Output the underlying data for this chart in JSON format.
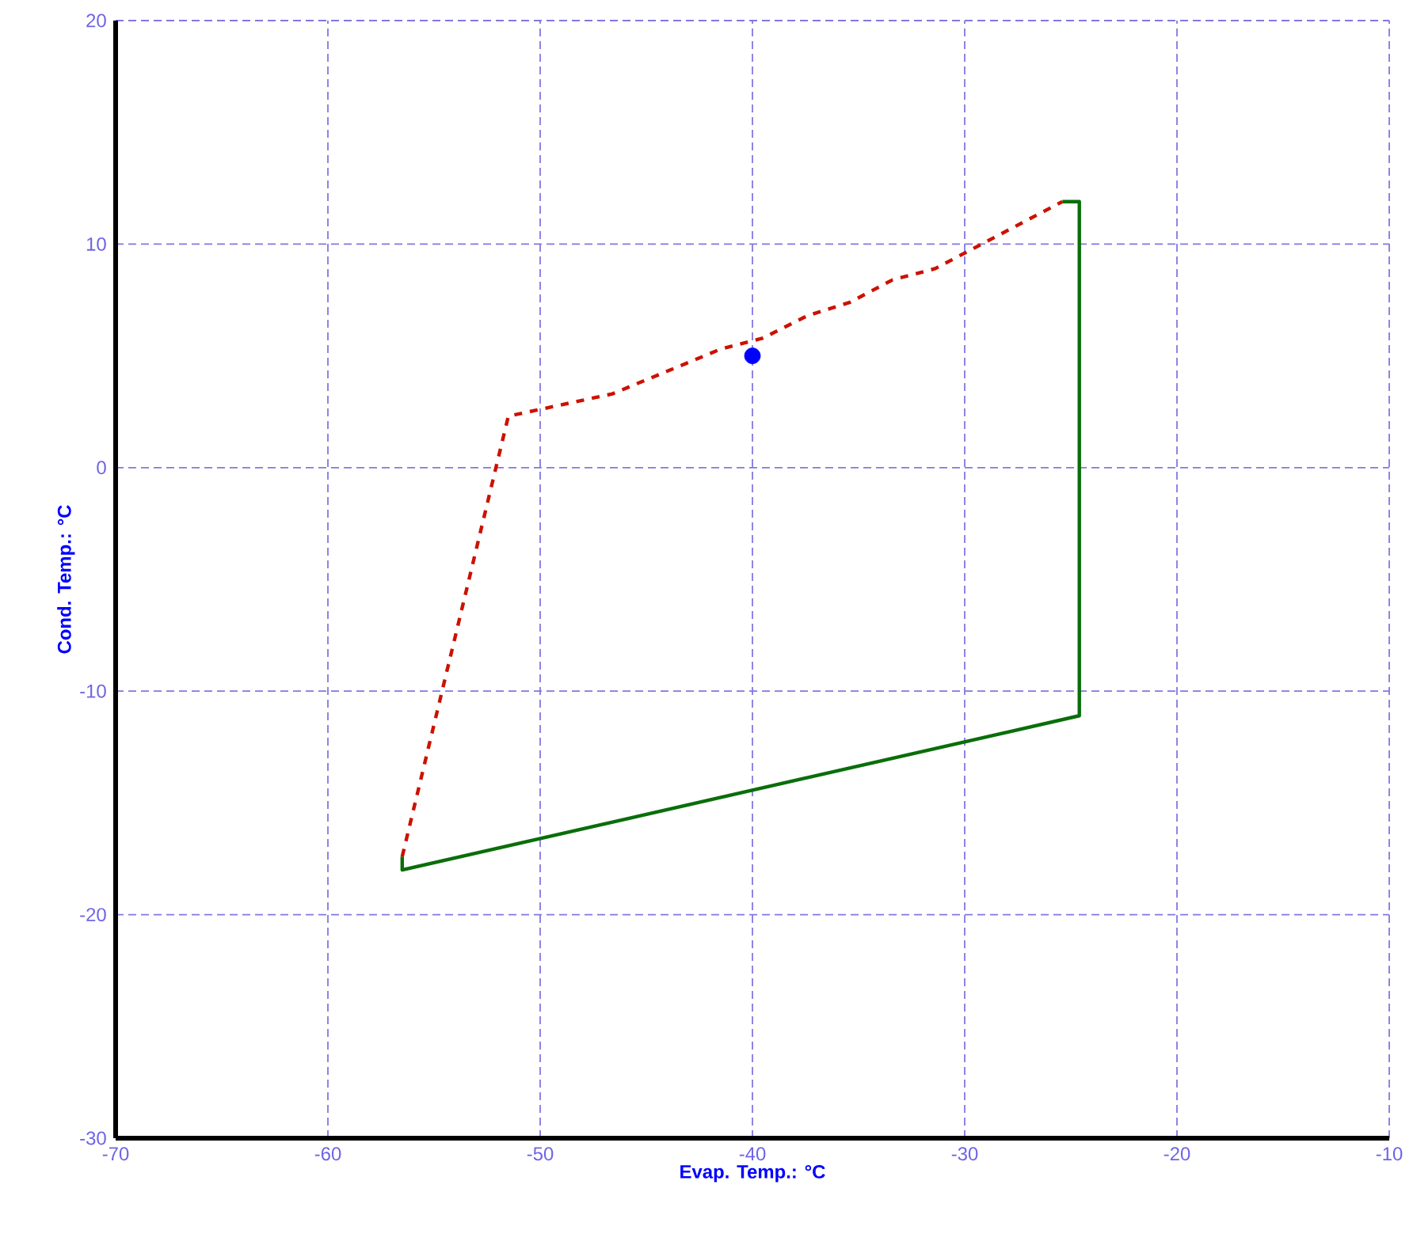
{
  "chart_data": {
    "type": "line",
    "xlabel": "Evap. Temp.: °C",
    "ylabel": "Cond. Temp.: °C",
    "xlim": [
      -70,
      -10
    ],
    "ylim": [
      -30,
      20
    ],
    "xticks": [
      -70,
      -60,
      -50,
      -40,
      -30,
      -20,
      -10
    ],
    "yticks": [
      -30,
      -20,
      -10,
      0,
      10,
      20
    ],
    "grid": true,
    "marker": "none",
    "series": [
      {
        "color": "#0a6e0a",
        "line_style": "solid",
        "x": [
          -25.4,
          -24.6,
          -24.6,
          -56.5,
          -56.5
        ],
        "values": [
          11.9,
          11.9,
          -11.1,
          -18.0,
          -17.4
        ]
      },
      {
        "color": "#cc1100",
        "line_style": "dashed",
        "x": [
          -56.5,
          -51.5,
          -46.6,
          -41.5,
          -39.5,
          -37.4,
          -35.4,
          -33.4,
          -31.4,
          -25.4
        ],
        "values": [
          -17.4,
          2.3,
          3.3,
          5.3,
          5.8,
          6.8,
          7.4,
          8.4,
          8.9,
          11.9
        ]
      },
      {
        "type": "scatter",
        "color": "#0000ff",
        "marker": "circle",
        "x": [
          -40
        ],
        "values": [
          5
        ]
      }
    ]
  }
}
